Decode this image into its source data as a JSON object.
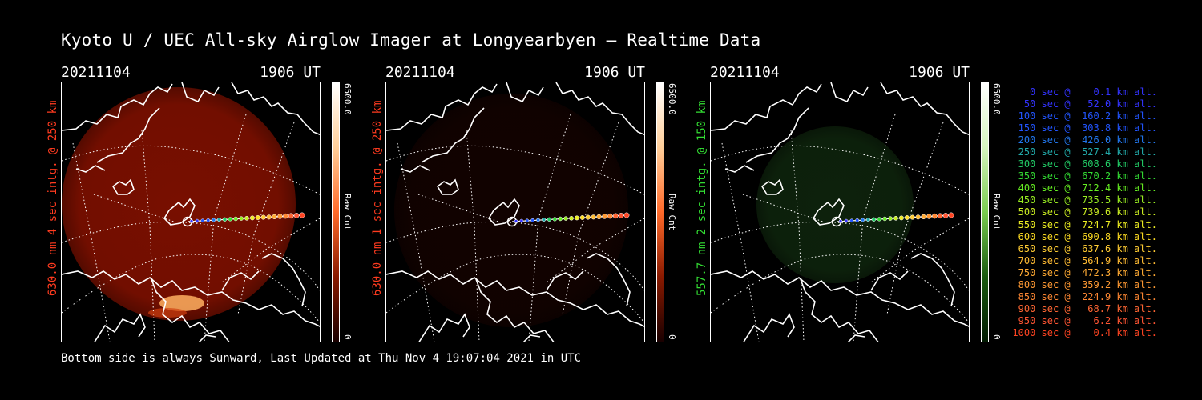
{
  "title": "Kyoto U / UEC All-sky Airglow Imager at Longyearbyen — Realtime Data",
  "footer": "Bottom side is always Sunward, Last Updated at Thu Nov  4 19:07:04 2021 in UTC",
  "panels": [
    {
      "date": "20211104",
      "time": "1906 UT",
      "label": "630.0 nm 4 sec intg. @ 250 km",
      "label_color": "#ff3b1f",
      "cbar_max": "6500.0",
      "cbar_min": "0",
      "cbar_unit": "Raw Cnt",
      "image_color": "#a01400",
      "brightness": 0.75
    },
    {
      "date": "20211104",
      "time": "1906 UT",
      "label": "630.0 nm 1 sec intg. @ 250 km",
      "label_color": "#ff3b1f",
      "cbar_max": "6500.0",
      "cbar_min": "0",
      "cbar_unit": "Raw Cnt",
      "image_color": "#3a0600",
      "brightness": 0.3
    },
    {
      "date": "20211104",
      "time": "1906 UT",
      "label": "557.7 nm 2 sec intg. @ 150 km",
      "label_color": "#33dd33",
      "cbar_max": "6500.0",
      "cbar_min": "0",
      "cbar_unit": "Raw Cnt",
      "image_color": "#1d4a1a",
      "brightness": 0.45
    }
  ],
  "legend": [
    {
      "text": "   0 sec @    0.1 km alt.",
      "color": "#3333ff"
    },
    {
      "text": "  50 sec @   52.0 km alt.",
      "color": "#3333ff"
    },
    {
      "text": " 100 sec @  160.2 km alt.",
      "color": "#2255ff"
    },
    {
      "text": " 150 sec @  303.8 km alt.",
      "color": "#2255ff"
    },
    {
      "text": " 200 sec @  426.0 km alt.",
      "color": "#2277ee"
    },
    {
      "text": " 250 sec @  527.4 km alt.",
      "color": "#22aaaa"
    },
    {
      "text": " 300 sec @  608.6 km alt.",
      "color": "#22cc66"
    },
    {
      "text": " 350 sec @  670.2 km alt.",
      "color": "#33dd33"
    },
    {
      "text": " 400 sec @  712.4 km alt.",
      "color": "#66ee22"
    },
    {
      "text": " 450 sec @  735.5 km alt.",
      "color": "#99ee22"
    },
    {
      "text": " 500 sec @  739.6 km alt.",
      "color": "#ccee22"
    },
    {
      "text": " 550 sec @  724.7 km alt.",
      "color": "#eeee22"
    },
    {
      "text": " 600 sec @  690.8 km alt.",
      "color": "#ffdd22"
    },
    {
      "text": " 650 sec @  637.6 km alt.",
      "color": "#ffcc33"
    },
    {
      "text": " 700 sec @  564.9 km alt.",
      "color": "#ffbb33"
    },
    {
      "text": " 750 sec @  472.3 km alt.",
      "color": "#ffaa33"
    },
    {
      "text": " 800 sec @  359.2 km alt.",
      "color": "#ff9933"
    },
    {
      "text": " 850 sec @  224.9 km alt.",
      "color": "#ff8833"
    },
    {
      "text": " 900 sec @   68.7 km alt.",
      "color": "#ff6633"
    },
    {
      "text": " 950 sec @    6.2 km alt.",
      "color": "#ff5533"
    },
    {
      "text": "1000 sec @    0.4 km alt.",
      "color": "#ff4422"
    }
  ]
}
